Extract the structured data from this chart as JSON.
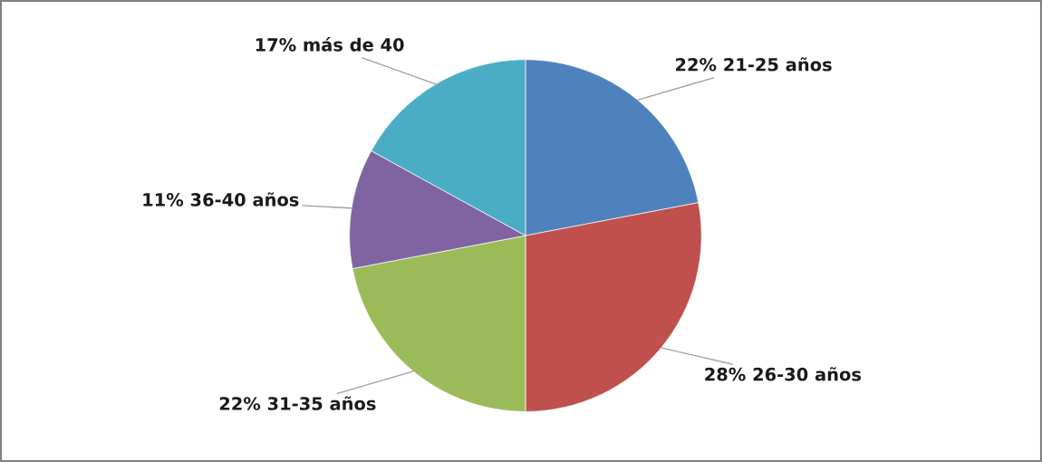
{
  "chart_data": {
    "type": "pie",
    "categories": [
      "21-25 años",
      "26-30 años",
      "31-35 años",
      "36-40 años",
      "más de 40"
    ],
    "values": [
      22,
      28,
      22,
      11,
      17
    ],
    "value_labels": [
      "22%",
      "28%",
      "22%",
      "11%",
      "17%"
    ],
    "colors": [
      "#4f81bd",
      "#c0504d",
      "#9bbb59",
      "#8064a2",
      "#4bacc6"
    ],
    "legend": false
  }
}
